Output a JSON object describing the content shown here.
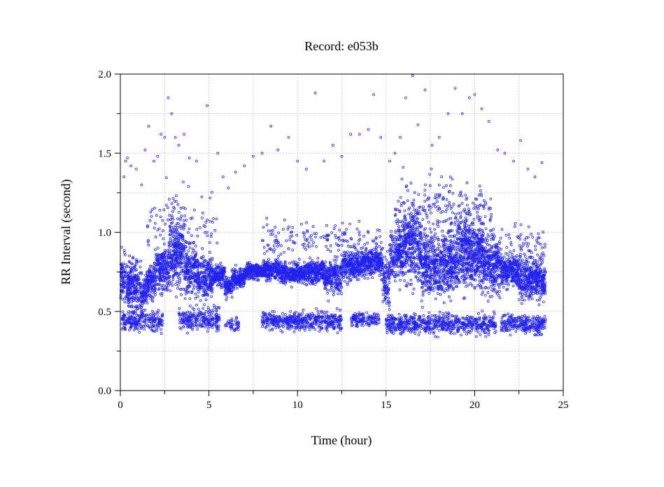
{
  "chart_data": {
    "type": "scatter",
    "title": "Record:  e053b",
    "xlabel": "Time (hour)",
    "ylabel": "RR Interval (second)",
    "xlim": [
      0,
      25
    ],
    "ylim": [
      0,
      2
    ],
    "x_ticks": [
      "0",
      "5",
      "10",
      "15",
      "20",
      "25"
    ],
    "y_ticks": [
      "0.0",
      "0.5",
      "1.0",
      "1.5",
      "2.0"
    ],
    "grid": true,
    "marker": "small-open-circle",
    "colors": {
      "points": "#2222ee",
      "axes": "#000000",
      "grid": "#aaaaaa"
    },
    "series": [
      {
        "name": "",
        "bands": [
          {
            "from": 0.0,
            "to": 0.3,
            "center": 0.72,
            "spread": 0.07,
            "density": 9
          },
          {
            "from": 0.3,
            "to": 1.2,
            "center": 0.66,
            "spread": 0.08,
            "density": 10
          },
          {
            "from": 1.2,
            "to": 1.5,
            "center": 0.62,
            "spread": 0.05,
            "density": 10
          },
          {
            "from": 1.5,
            "to": 2.0,
            "center": 0.7,
            "spread": 0.06,
            "density": 10
          },
          {
            "from": 2.0,
            "to": 2.8,
            "center": 0.78,
            "spread": 0.07,
            "density": 10
          },
          {
            "from": 2.8,
            "to": 3.6,
            "center": 0.88,
            "spread": 0.11,
            "density": 12
          },
          {
            "from": 3.6,
            "to": 4.3,
            "center": 0.76,
            "spread": 0.08,
            "density": 10
          },
          {
            "from": 4.3,
            "to": 5.2,
            "center": 0.72,
            "spread": 0.06,
            "density": 10
          },
          {
            "from": 5.2,
            "to": 5.9,
            "center": 0.73,
            "spread": 0.03,
            "density": 9
          },
          {
            "from": 5.9,
            "to": 6.3,
            "center": 0.65,
            "spread": 0.03,
            "density": 9
          },
          {
            "from": 6.3,
            "to": 7.0,
            "center": 0.71,
            "spread": 0.03,
            "density": 9
          },
          {
            "from": 7.0,
            "to": 8.0,
            "center": 0.75,
            "spread": 0.025,
            "density": 9
          },
          {
            "from": 8.0,
            "to": 9.0,
            "center": 0.76,
            "spread": 0.03,
            "density": 9
          },
          {
            "from": 9.0,
            "to": 10.5,
            "center": 0.74,
            "spread": 0.03,
            "density": 9
          },
          {
            "from": 10.5,
            "to": 11.5,
            "center": 0.75,
            "spread": 0.04,
            "density": 9
          },
          {
            "from": 11.5,
            "to": 12.5,
            "center": 0.72,
            "spread": 0.05,
            "density": 9
          },
          {
            "from": 12.5,
            "to": 13.5,
            "center": 0.78,
            "spread": 0.04,
            "density": 9
          },
          {
            "from": 13.5,
            "to": 14.8,
            "center": 0.81,
            "spread": 0.04,
            "density": 9
          },
          {
            "from": 14.8,
            "to": 15.2,
            "center": 0.68,
            "spread": 0.07,
            "density": 9
          },
          {
            "from": 15.2,
            "to": 16.0,
            "center": 0.86,
            "spread": 0.08,
            "density": 10
          },
          {
            "from": 16.0,
            "to": 17.0,
            "center": 0.92,
            "spread": 0.12,
            "density": 12
          },
          {
            "from": 17.0,
            "to": 18.0,
            "center": 0.78,
            "spread": 0.09,
            "density": 11
          },
          {
            "from": 18.0,
            "to": 19.0,
            "center": 0.8,
            "spread": 0.09,
            "density": 11
          },
          {
            "from": 19.0,
            "to": 20.5,
            "center": 0.86,
            "spread": 0.11,
            "density": 13
          },
          {
            "from": 20.5,
            "to": 21.5,
            "center": 0.8,
            "spread": 0.08,
            "density": 11
          },
          {
            "from": 21.5,
            "to": 22.5,
            "center": 0.76,
            "spread": 0.05,
            "density": 10
          },
          {
            "from": 22.5,
            "to": 24.0,
            "center": 0.7,
            "spread": 0.06,
            "density": 10
          },
          {
            "from": 0.1,
            "to": 2.4,
            "center": 0.44,
            "spread": 0.035,
            "density": 4
          },
          {
            "from": 3.3,
            "to": 5.6,
            "center": 0.45,
            "spread": 0.035,
            "density": 4
          },
          {
            "from": 5.9,
            "to": 6.7,
            "center": 0.42,
            "spread": 0.02,
            "density": 2
          },
          {
            "from": 8.0,
            "to": 12.5,
            "center": 0.44,
            "spread": 0.03,
            "density": 4
          },
          {
            "from": 13.0,
            "to": 14.6,
            "center": 0.45,
            "spread": 0.02,
            "density": 3
          },
          {
            "from": 15.0,
            "to": 21.2,
            "center": 0.42,
            "spread": 0.03,
            "density": 4
          },
          {
            "from": 21.5,
            "to": 24.0,
            "center": 0.42,
            "spread": 0.03,
            "density": 4
          },
          {
            "from": 1.5,
            "to": 5.5,
            "center": 1.05,
            "spread": 0.1,
            "density": 1
          },
          {
            "from": 15.5,
            "to": 21.0,
            "center": 1.1,
            "spread": 0.12,
            "density": 2
          },
          {
            "from": 8.0,
            "to": 14.8,
            "center": 0.95,
            "spread": 0.06,
            "density": 1
          },
          {
            "from": 21.5,
            "to": 24.0,
            "center": 0.92,
            "spread": 0.06,
            "density": 1
          }
        ],
        "outliers": [
          [
            0.2,
            1.35
          ],
          [
            0.3,
            1.45
          ],
          [
            0.4,
            1.47
          ],
          [
            0.6,
            1.42
          ],
          [
            0.9,
            1.4
          ],
          [
            1.2,
            1.3
          ],
          [
            1.4,
            1.52
          ],
          [
            1.6,
            1.67
          ],
          [
            1.9,
            1.45
          ],
          [
            2.1,
            1.48
          ],
          [
            2.3,
            1.62
          ],
          [
            2.5,
            1.6
          ],
          [
            2.7,
            1.85
          ],
          [
            2.9,
            1.75
          ],
          [
            3.1,
            1.6
          ],
          [
            3.3,
            1.55
          ],
          [
            3.6,
            1.62
          ],
          [
            3.9,
            1.47
          ],
          [
            4.3,
            1.45
          ],
          [
            4.9,
            1.8
          ],
          [
            5.5,
            1.5
          ],
          [
            5.8,
            1.35
          ],
          [
            6.1,
            1.28
          ],
          [
            6.5,
            1.38
          ],
          [
            7.0,
            1.42
          ],
          [
            7.5,
            1.48
          ],
          [
            8.0,
            1.5
          ],
          [
            8.5,
            1.67
          ],
          [
            8.9,
            1.52
          ],
          [
            9.5,
            1.6
          ],
          [
            10.0,
            1.45
          ],
          [
            10.5,
            1.4
          ],
          [
            11.0,
            1.88
          ],
          [
            11.5,
            1.45
          ],
          [
            12.0,
            1.55
          ],
          [
            12.5,
            1.48
          ],
          [
            13.0,
            1.62
          ],
          [
            13.5,
            1.62
          ],
          [
            14.0,
            1.65
          ],
          [
            14.3,
            1.87
          ],
          [
            14.7,
            1.6
          ],
          [
            15.2,
            1.45
          ],
          [
            15.5,
            1.5
          ],
          [
            15.8,
            1.6
          ],
          [
            16.1,
            1.85
          ],
          [
            16.5,
            1.99
          ],
          [
            16.8,
            1.68
          ],
          [
            17.2,
            1.9
          ],
          [
            17.6,
            1.55
          ],
          [
            18.0,
            1.6
          ],
          [
            18.5,
            1.75
          ],
          [
            18.9,
            1.91
          ],
          [
            19.3,
            1.75
          ],
          [
            19.7,
            1.85
          ],
          [
            20.0,
            1.87
          ],
          [
            20.4,
            1.78
          ],
          [
            20.8,
            1.7
          ],
          [
            21.3,
            1.52
          ],
          [
            21.7,
            1.5
          ],
          [
            22.2,
            1.45
          ],
          [
            22.6,
            1.58
          ],
          [
            23.0,
            1.4
          ],
          [
            23.4,
            1.35
          ],
          [
            23.8,
            1.44
          ]
        ]
      }
    ]
  }
}
